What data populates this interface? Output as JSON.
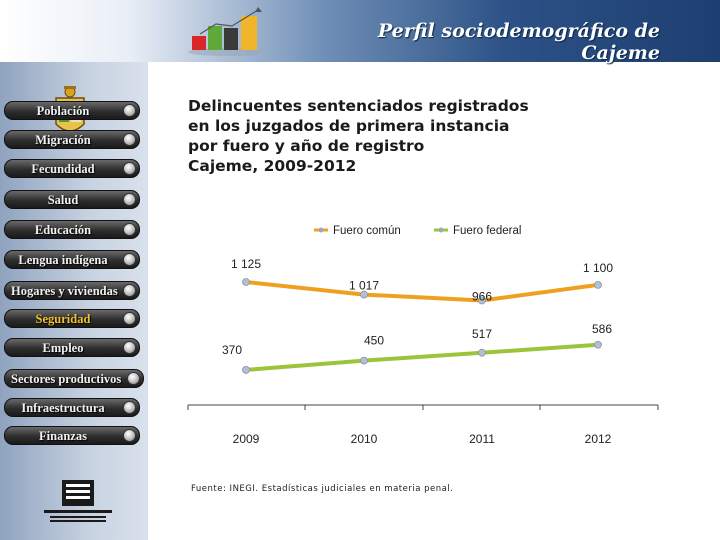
{
  "header": {
    "title": "Perfil sociodemográfico de Cajeme"
  },
  "sidebar": {
    "items": [
      {
        "label": "Población",
        "active": false
      },
      {
        "label": "Migración",
        "active": false
      },
      {
        "label": "Fecundidad",
        "active": false
      },
      {
        "label": "Salud",
        "active": false
      },
      {
        "label": "Educación",
        "active": false
      },
      {
        "label": "Lengua indígena",
        "active": false
      },
      {
        "label": "Hogares y viviendas",
        "active": false
      },
      {
        "label": "Seguridad",
        "active": true
      },
      {
        "label": "Empleo",
        "active": false
      },
      {
        "label": "Sectores productivos",
        "active": false
      },
      {
        "label": "Infraestructura",
        "active": false
      },
      {
        "label": "Finanzas",
        "active": false
      }
    ]
  },
  "colors": {
    "fuero_comun": "#f0a020",
    "fuero_federal": "#9cc43a",
    "active_nav": "#f2c230"
  },
  "chart_data": {
    "type": "line",
    "title": [
      "Delincuentes sentenciados registrados",
      "en los juzgados de primera instancia",
      "por fuero y año de registro",
      "Cajeme, 2009-2012"
    ],
    "categories": [
      "2009",
      "2010",
      "2011",
      "2012"
    ],
    "series": [
      {
        "name": "Fuero común",
        "values": [
          1125,
          1017,
          966,
          1100
        ],
        "labels": [
          "1 125",
          "1 017",
          "966",
          "1 100"
        ]
      },
      {
        "name": "Fuero federal",
        "values": [
          370,
          450,
          517,
          586
        ],
        "labels": [
          "370",
          "450",
          "517",
          "586"
        ]
      }
    ],
    "ylim": [
      0,
      1300
    ],
    "legend": "top",
    "grid": false,
    "source": "Fuente: INEGI. Estadísticas judiciales en materia penal."
  }
}
